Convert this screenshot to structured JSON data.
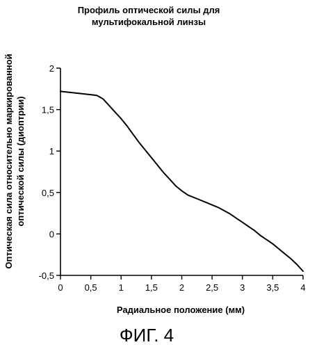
{
  "chart_data": {
    "type": "line",
    "title_lines": [
      "Профиль оптической силы для",
      "мультифокальной линзы"
    ],
    "xlabel": "Радиальное положение (мм)",
    "ylabel_lines": [
      "Оптическая сила относительно маркированной",
      "оптической силы (диоптрии)"
    ],
    "xlim": [
      0,
      4
    ],
    "ylim": [
      -0.5,
      2
    ],
    "x_ticks": [
      0,
      0.5,
      1,
      1.5,
      2,
      2.5,
      3,
      3.5,
      4
    ],
    "x_tick_labels": [
      "0",
      "0,5",
      "1",
      "1,5",
      "2",
      "2,5",
      "3",
      "3,5",
      "4"
    ],
    "y_ticks": [
      -0.5,
      0,
      0.5,
      1,
      1.5,
      2
    ],
    "y_tick_labels": [
      "-0,5",
      "0",
      "0,5",
      "1",
      "1,5",
      "2"
    ],
    "grid": false,
    "series": [
      {
        "color": "#000000",
        "x": [
          0,
          0.25,
          0.5,
          0.6,
          0.7,
          0.8,
          0.9,
          1.0,
          1.1,
          1.2,
          1.3,
          1.4,
          1.5,
          1.6,
          1.7,
          1.8,
          1.9,
          2.0,
          2.1,
          2.2,
          2.3,
          2.4,
          2.5,
          2.6,
          2.7,
          2.8,
          2.9,
          3.0,
          3.1,
          3.2,
          3.3,
          3.4,
          3.5,
          3.6,
          3.7,
          3.8,
          3.9,
          4.0
        ],
        "y": [
          1.72,
          1.7,
          1.68,
          1.67,
          1.63,
          1.55,
          1.47,
          1.39,
          1.3,
          1.2,
          1.1,
          1.01,
          0.92,
          0.83,
          0.74,
          0.66,
          0.58,
          0.52,
          0.47,
          0.44,
          0.41,
          0.38,
          0.35,
          0.32,
          0.28,
          0.24,
          0.19,
          0.14,
          0.09,
          0.04,
          -0.02,
          -0.07,
          -0.12,
          -0.18,
          -0.24,
          -0.3,
          -0.37,
          -0.45
        ]
      }
    ]
  },
  "caption": "ФИГ. 4"
}
